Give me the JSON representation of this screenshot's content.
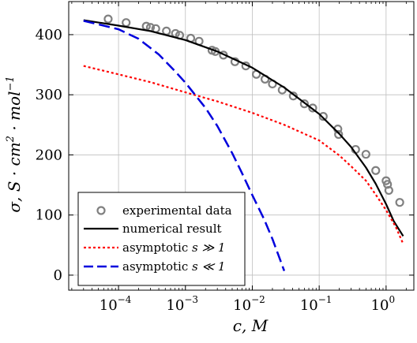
{
  "chart_data": {
    "type": "line",
    "xlabel": "c, M",
    "ylabel_parts": [
      "σ, S · cm",
      "2",
      " · mol",
      "−1"
    ],
    "x_scale": "log",
    "xlim": [
      1.8e-05,
      2.6
    ],
    "ylim": [
      -25,
      455
    ],
    "grid": true,
    "legend_position": "bottom-left",
    "x_ticks": [
      {
        "value": 0.0001,
        "base": "10",
        "exp": "−4"
      },
      {
        "value": 0.001,
        "base": "10",
        "exp": "−3"
      },
      {
        "value": 0.01,
        "base": "10",
        "exp": "−2"
      },
      {
        "value": 0.1,
        "base": "10",
        "exp": "−1"
      },
      {
        "value": 1,
        "base": "10",
        "exp": "0"
      }
    ],
    "y_ticks": [
      0,
      100,
      200,
      300,
      400
    ],
    "series": [
      {
        "name_parts": [
          "experimental data"
        ],
        "style": "markers",
        "color": "#808080",
        "points": [
          [
            7e-05,
            426
          ],
          [
            0.00013,
            420
          ],
          [
            0.00026,
            414
          ],
          [
            0.0003,
            412
          ],
          [
            0.00036,
            410
          ],
          [
            0.00052,
            406
          ],
          [
            0.00071,
            402
          ],
          [
            0.00082,
            399
          ],
          [
            0.0012,
            394
          ],
          [
            0.0016,
            389
          ],
          [
            0.0025,
            374
          ],
          [
            0.0028,
            372
          ],
          [
            0.0037,
            366
          ],
          [
            0.0055,
            355
          ],
          [
            0.008,
            348
          ],
          [
            0.0115,
            334
          ],
          [
            0.0155,
            326
          ],
          [
            0.02,
            318
          ],
          [
            0.028,
            308
          ],
          [
            0.041,
            298
          ],
          [
            0.06,
            285
          ],
          [
            0.08,
            278
          ],
          [
            0.115,
            264
          ],
          [
            0.19,
            243
          ],
          [
            0.195,
            234
          ],
          [
            0.35,
            209
          ],
          [
            0.5,
            201
          ],
          [
            0.7,
            174
          ],
          [
            1.0,
            157
          ],
          [
            1.05,
            151
          ],
          [
            1.1,
            141
          ],
          [
            1.6,
            121
          ]
        ]
      },
      {
        "name_parts": [
          "numerical result"
        ],
        "style": "solid",
        "color": "#000000",
        "points": [
          [
            3e-05,
            424
          ],
          [
            0.0001,
            415
          ],
          [
            0.0003,
            406
          ],
          [
            0.001,
            391
          ],
          [
            0.003,
            372
          ],
          [
            0.01,
            345
          ],
          [
            0.03,
            312
          ],
          [
            0.1,
            268
          ],
          [
            0.2,
            235
          ],
          [
            0.3,
            213
          ],
          [
            0.5,
            179
          ],
          [
            0.7,
            152
          ],
          [
            1.0,
            118
          ],
          [
            1.3,
            90
          ],
          [
            1.8,
            65
          ]
        ]
      },
      {
        "name_parts": [
          "asymptotic ",
          "s ≫ 1"
        ],
        "style": "dotted",
        "color": "#ff0000",
        "points": [
          [
            3e-05,
            348
          ],
          [
            0.0001,
            334
          ],
          [
            0.0003,
            321
          ],
          [
            0.001,
            304
          ],
          [
            0.003,
            289
          ],
          [
            0.01,
            270
          ],
          [
            0.03,
            250
          ],
          [
            0.1,
            224
          ],
          [
            0.2,
            199
          ],
          [
            0.3,
            181
          ],
          [
            0.5,
            157
          ],
          [
            0.7,
            134
          ],
          [
            1.0,
            108
          ],
          [
            1.4,
            80
          ],
          [
            1.8,
            52
          ]
        ]
      },
      {
        "name_parts": [
          "asymptotic ",
          "s ≪ 1"
        ],
        "style": "dashed",
        "color": "#0000dd",
        "points": [
          [
            3e-05,
            423
          ],
          [
            0.0001,
            409
          ],
          [
            0.0002,
            393
          ],
          [
            0.0004,
            367
          ],
          [
            0.0007,
            339
          ],
          [
            0.001,
            320
          ],
          [
            0.002,
            278
          ],
          [
            0.003,
            248
          ],
          [
            0.005,
            203
          ],
          [
            0.007,
            170
          ],
          [
            0.01,
            133
          ],
          [
            0.015,
            93
          ],
          [
            0.02,
            60
          ],
          [
            0.025,
            31
          ],
          [
            0.03,
            7
          ]
        ]
      }
    ]
  }
}
